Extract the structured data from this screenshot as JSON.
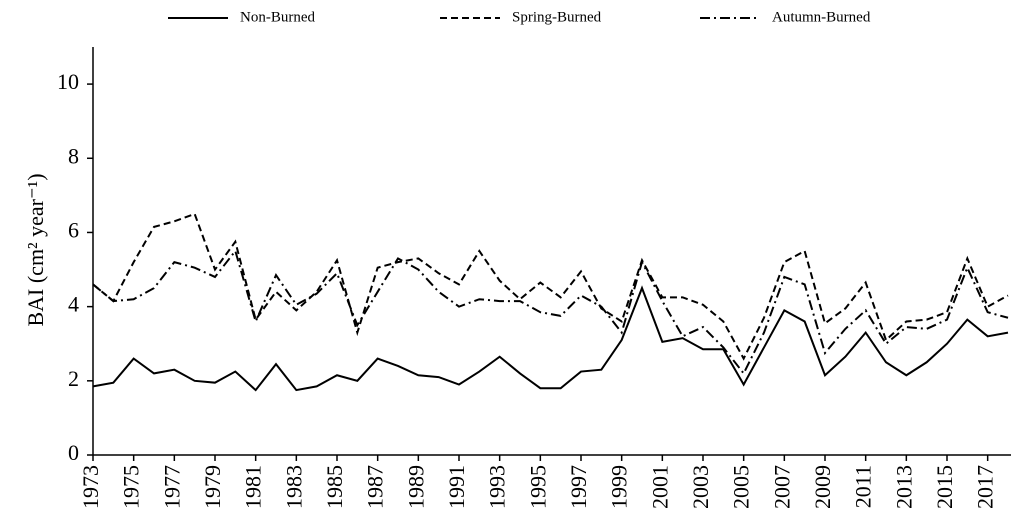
{
  "chart_data": {
    "type": "line",
    "y_label": "BAI (cm² year⁻¹)",
    "x": [
      1973,
      1974,
      1975,
      1976,
      1977,
      1978,
      1979,
      1980,
      1981,
      1982,
      1983,
      1984,
      1985,
      1986,
      1987,
      1988,
      1989,
      1990,
      1991,
      1992,
      1993,
      1994,
      1995,
      1996,
      1997,
      1998,
      1999,
      2000,
      2001,
      2002,
      2003,
      2004,
      2005,
      2006,
      2007,
      2008,
      2009,
      2010,
      2011,
      2012,
      2013,
      2014,
      2015,
      2016,
      2017,
      2018
    ],
    "xlim": [
      1973,
      2018
    ],
    "xticks": [
      1973,
      1975,
      1977,
      1979,
      1981,
      1983,
      1985,
      1987,
      1989,
      1991,
      1993,
      1995,
      1997,
      1999,
      2001,
      2003,
      2005,
      2007,
      2009,
      2011,
      2013,
      2015,
      2017
    ],
    "ylim": [
      0,
      11
    ],
    "yticks": [
      0,
      2,
      4,
      6,
      8,
      10
    ],
    "series": [
      {
        "name": "Non-Burned",
        "color": "#000000",
        "dash": "solid",
        "values": [
          1.85,
          1.95,
          2.6,
          2.2,
          2.3,
          2.0,
          1.95,
          2.25,
          1.75,
          2.45,
          1.75,
          1.85,
          2.15,
          2.0,
          2.6,
          2.4,
          2.15,
          2.1,
          1.9,
          2.25,
          2.65,
          2.2,
          1.8,
          1.8,
          2.25,
          2.3,
          3.1,
          4.5,
          3.05,
          3.15,
          2.85,
          2.85,
          1.9,
          2.9,
          3.9,
          3.6,
          2.15,
          2.65,
          3.3,
          2.5,
          2.15,
          2.5,
          3.0,
          3.65,
          3.2,
          3.3
        ]
      },
      {
        "name": "Spring-Burned",
        "color": "#000000",
        "dash": "dashed",
        "values": [
          4.6,
          4.15,
          5.2,
          6.15,
          6.3,
          6.5,
          5.0,
          5.75,
          3.65,
          4.4,
          3.9,
          4.4,
          5.25,
          3.3,
          5.05,
          5.2,
          5.3,
          4.9,
          4.6,
          5.5,
          4.7,
          4.2,
          4.65,
          4.25,
          4.95,
          3.95,
          3.6,
          5.25,
          4.25,
          4.25,
          4.05,
          3.6,
          2.6,
          3.7,
          5.2,
          5.5,
          3.55,
          3.95,
          4.65,
          3.1,
          3.6,
          3.65,
          3.85,
          5.3,
          4.0,
          4.3
        ]
      },
      {
        "name": "Autumn-Burned",
        "color": "#000000",
        "dash": "dashdot",
        "values": [
          4.6,
          4.15,
          4.2,
          4.5,
          5.2,
          5.05,
          4.8,
          5.5,
          3.6,
          4.85,
          4.05,
          4.35,
          4.9,
          3.5,
          4.4,
          5.3,
          5.0,
          4.4,
          4.0,
          4.2,
          4.15,
          4.15,
          3.85,
          3.75,
          4.3,
          4.0,
          3.3,
          5.2,
          4.15,
          3.2,
          3.45,
          2.9,
          2.2,
          3.3,
          4.8,
          4.6,
          2.75,
          3.4,
          3.9,
          3.0,
          3.45,
          3.4,
          3.65,
          5.05,
          3.85,
          3.7
        ]
      }
    ]
  }
}
